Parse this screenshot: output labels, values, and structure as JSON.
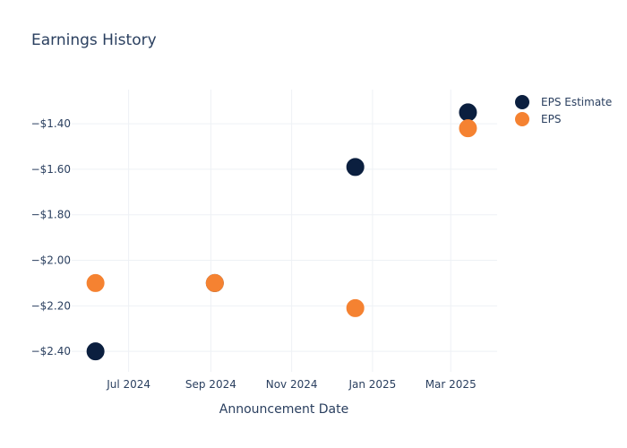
{
  "chart_data": {
    "type": "scatter",
    "title": "Earnings History",
    "xlabel": "Announcement Date",
    "ylabel": "",
    "x_ticks": [
      {
        "date": "2024-07-01",
        "label": "Jul 2024"
      },
      {
        "date": "2024-09-01",
        "label": "Sep 2024"
      },
      {
        "date": "2024-11-01",
        "label": "Nov 2024"
      },
      {
        "date": "2025-01-01",
        "label": "Jan 2025"
      },
      {
        "date": "2025-03-01",
        "label": "Mar 2025"
      }
    ],
    "xlim": [
      "2024-05-19",
      "2025-04-05"
    ],
    "y_ticks": [
      {
        "value": -2.4,
        "label": "−$2.40"
      },
      {
        "value": -2.2,
        "label": "−$2.20"
      },
      {
        "value": -2.0,
        "label": "−$2.00"
      },
      {
        "value": -1.8,
        "label": "−$1.80"
      },
      {
        "value": -1.6,
        "label": "−$1.60"
      },
      {
        "value": -1.4,
        "label": "−$1.40"
      }
    ],
    "ylim": [
      -2.49,
      -1.25
    ],
    "grid": true,
    "legend_position": "top-right",
    "series": [
      {
        "name": "EPS Estimate",
        "color": "#0b1f3f",
        "points": [
          {
            "x": "2024-06-06",
            "y": -2.4
          },
          {
            "x": "2024-09-04",
            "y": -2.1
          },
          {
            "x": "2024-12-19",
            "y": -1.59
          },
          {
            "x": "2025-03-14",
            "y": -1.35
          }
        ]
      },
      {
        "name": "EPS",
        "color": "#f58231",
        "points": [
          {
            "x": "2024-06-06",
            "y": -2.1
          },
          {
            "x": "2024-09-04",
            "y": -2.1
          },
          {
            "x": "2024-12-19",
            "y": -2.21
          },
          {
            "x": "2025-03-14",
            "y": -1.42
          }
        ]
      }
    ]
  }
}
